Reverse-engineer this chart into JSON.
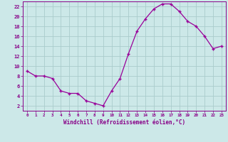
{
  "x": [
    0,
    1,
    2,
    3,
    4,
    5,
    6,
    7,
    8,
    9,
    10,
    11,
    12,
    13,
    14,
    15,
    16,
    17,
    18,
    19,
    20,
    21,
    22,
    23
  ],
  "y": [
    9,
    8,
    8,
    7.5,
    5,
    4.5,
    4.5,
    3,
    2.5,
    2,
    5,
    7.5,
    12.5,
    17,
    19.5,
    21.5,
    22.5,
    22.5,
    21,
    19,
    18,
    16,
    13.5,
    14
  ],
  "line_color": "#990099",
  "marker_color": "#990099",
  "bg_color": "#cce8e8",
  "grid_color": "#aacccc",
  "xlabel": "Windchill (Refroidissement éolien,°C)",
  "ylim": [
    1,
    23
  ],
  "xlim": [
    -0.5,
    23.5
  ],
  "yticks": [
    2,
    4,
    6,
    8,
    10,
    12,
    14,
    16,
    18,
    20,
    22
  ],
  "xticks": [
    0,
    1,
    2,
    3,
    4,
    5,
    6,
    7,
    8,
    9,
    10,
    11,
    12,
    13,
    14,
    15,
    16,
    17,
    18,
    19,
    20,
    21,
    22,
    23
  ],
  "axis_label_color": "#880088",
  "tick_color": "#880088",
  "spine_color": "#880088"
}
